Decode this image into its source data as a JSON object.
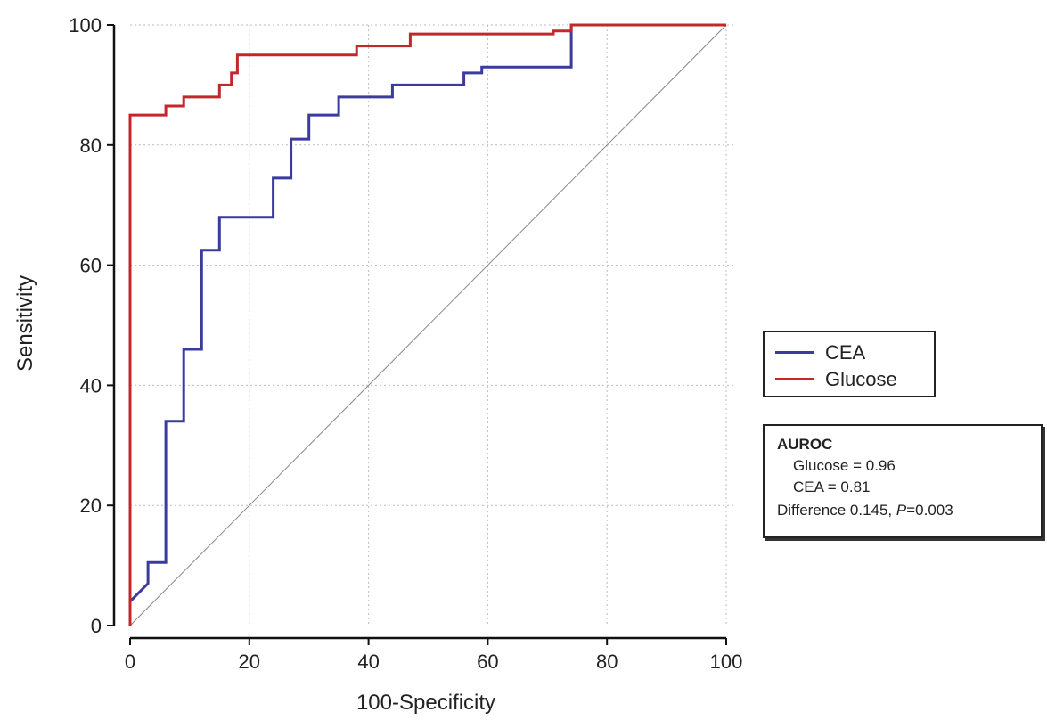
{
  "chart_data": {
    "type": "line",
    "xlabel": "100-Specificity",
    "ylabel": "Sensitivity",
    "xlim": [
      0,
      100
    ],
    "ylim": [
      0,
      100
    ],
    "xticks": [
      0,
      20,
      40,
      60,
      80,
      100
    ],
    "yticks": [
      0,
      20,
      40,
      60,
      80,
      100
    ],
    "grid": true,
    "legend_position": "right",
    "series": [
      {
        "name": "CEA",
        "color": "#3b3b9e",
        "x": [
          0,
          0,
          3,
          3,
          6,
          6,
          9,
          9,
          12,
          12,
          15,
          15,
          24,
          24,
          27,
          27,
          30,
          30,
          35,
          35,
          44,
          44,
          56,
          56,
          59,
          59,
          74,
          74,
          100
        ],
        "y": [
          0,
          4,
          7,
          10.5,
          10.5,
          34,
          34,
          46,
          46,
          62.5,
          62.5,
          68,
          68,
          74.5,
          74.5,
          81,
          81,
          85,
          85,
          88,
          88,
          90,
          90,
          92,
          92,
          93,
          93,
          100,
          100
        ]
      },
      {
        "name": "Glucose",
        "color": "#c0282b",
        "x": [
          0,
          0,
          6,
          6,
          9,
          9,
          15,
          15,
          17,
          17,
          18,
          18,
          38,
          38,
          47,
          47,
          71,
          71,
          74,
          74,
          100
        ],
        "y": [
          0,
          85,
          85,
          86.5,
          86.5,
          88,
          88,
          90,
          90,
          92,
          92,
          95,
          95,
          96.5,
          96.5,
          98.5,
          98.5,
          99,
          99,
          100,
          100
        ]
      },
      {
        "name": "",
        "color": "#888888",
        "x": [
          0,
          100
        ],
        "y": [
          0,
          100
        ]
      }
    ]
  },
  "legend": {
    "items": [
      {
        "label": "CEA",
        "color": "#3b3b9e"
      },
      {
        "label": "Glucose",
        "color": "#c0282b"
      }
    ]
  },
  "auroc": {
    "title": "AUROC",
    "glucose": "Glucose = 0.96",
    "cea": "CEA = 0.81",
    "difference_prefix": "Difference 0.145, ",
    "p_label": "P",
    "p_value": "=0.003"
  }
}
